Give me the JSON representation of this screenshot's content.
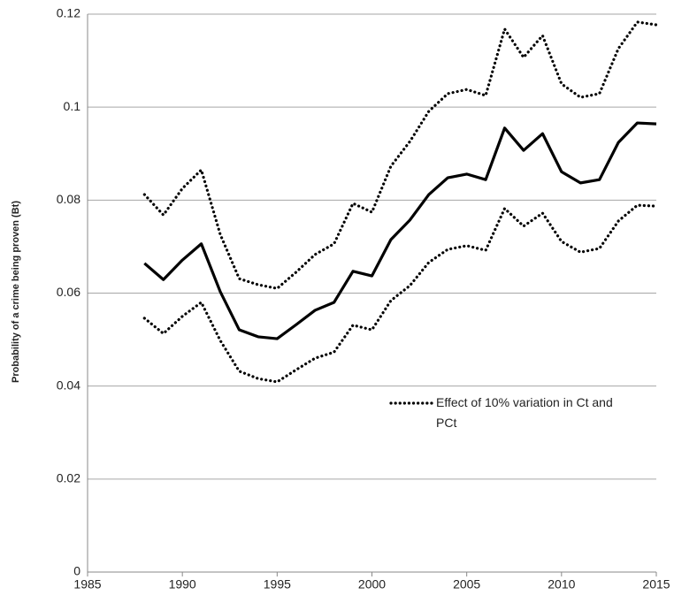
{
  "chart_data": {
    "type": "line",
    "y_label": "Probability of a crime being proven (Bt)",
    "x": [
      1988,
      1989,
      1990,
      1991,
      1992,
      1993,
      1994,
      1995,
      1996,
      1997,
      1998,
      1999,
      2000,
      2001,
      2002,
      2003,
      2004,
      2005,
      2006,
      2007,
      2008,
      2009,
      2010,
      2011,
      2012,
      2013,
      2014,
      2015
    ],
    "series": [
      {
        "color": "#000000",
        "line_style": "solid",
        "values": [
          0.0664,
          0.0629,
          0.0671,
          0.0706,
          0.0603,
          0.0521,
          0.0506,
          0.0502,
          0.0532,
          0.0563,
          0.058,
          0.0647,
          0.0637,
          0.0715,
          0.0757,
          0.0812,
          0.0848,
          0.0856,
          0.0844,
          0.0955,
          0.0907,
          0.0943,
          0.0861,
          0.0837,
          0.0844,
          0.0924,
          0.0966,
          0.0964
        ]
      },
      {
        "name": "Effect of 10% variation in Ct and PCt",
        "color": "#000000",
        "line_style": "dotted",
        "values": [
          0.0812,
          0.0768,
          0.0825,
          0.0865,
          0.0726,
          0.0631,
          0.0618,
          0.061,
          0.0645,
          0.0683,
          0.0706,
          0.0793,
          0.0774,
          0.0873,
          0.0926,
          0.0991,
          0.1029,
          0.1038,
          0.1025,
          0.1168,
          0.1107,
          0.1154,
          0.105,
          0.1021,
          0.1029,
          0.1126,
          0.1183,
          0.1177
        ]
      },
      {
        "color": "#000000",
        "line_style": "dotted",
        "values": [
          0.0546,
          0.0513,
          0.055,
          0.058,
          0.0498,
          0.0432,
          0.0416,
          0.0409,
          0.0435,
          0.046,
          0.0473,
          0.0531,
          0.0521,
          0.0584,
          0.0616,
          0.0666,
          0.0694,
          0.0702,
          0.0692,
          0.0782,
          0.0744,
          0.0772,
          0.0711,
          0.0688,
          0.0696,
          0.0755,
          0.0789,
          0.0787
        ]
      }
    ],
    "xlim": [
      1985,
      2015
    ],
    "xticks": [
      1985,
      1990,
      1995,
      2000,
      2005,
      2010,
      2015
    ],
    "ylim": [
      0,
      0.12
    ],
    "yticks": [
      0,
      0.02,
      0.04,
      0.06,
      0.08,
      0.1,
      0.12
    ],
    "grid": true
  }
}
